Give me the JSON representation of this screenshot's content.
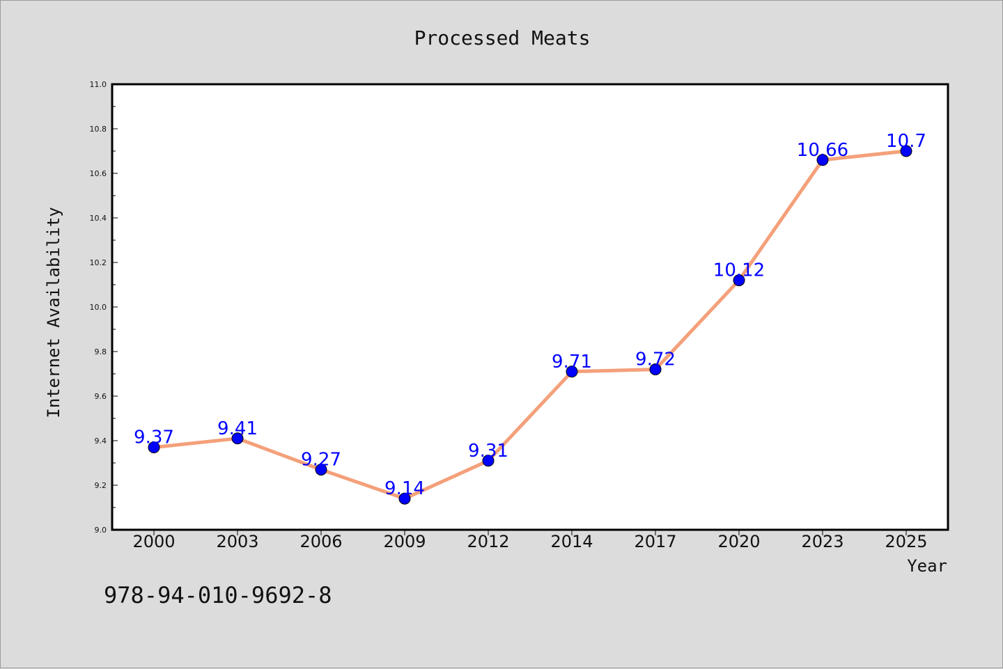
{
  "chart_data": {
    "type": "line",
    "title": "Processed Meats",
    "xlabel": "Year",
    "ylabel": "Internet Availability",
    "categories": [
      "2000",
      "2003",
      "2006",
      "2009",
      "2012",
      "2014",
      "2017",
      "2020",
      "2023",
      "2025"
    ],
    "series": [
      {
        "values": [
          9.37,
          9.41,
          9.27,
          9.14,
          9.31,
          9.71,
          9.72,
          10.12,
          10.66,
          10.7
        ],
        "data_labels": [
          "9.37",
          "9.41",
          "9.27",
          "9.14",
          "9.31",
          "9.71",
          "9.72",
          "10.12",
          "10.66",
          "10.7"
        ]
      }
    ],
    "ylim": [
      9.0,
      11.0
    ],
    "yticks": [
      "9.0",
      "9.2",
      "9.4",
      "9.6",
      "9.8",
      "10.0",
      "10.2",
      "10.4",
      "10.6",
      "10.8",
      "11.0"
    ],
    "grid": false,
    "line_color": "#f4a07a",
    "marker_color": "#0000ff",
    "label_color": "#0000ff"
  },
  "footer": {
    "isbn": "978-94-010-9692-8"
  }
}
